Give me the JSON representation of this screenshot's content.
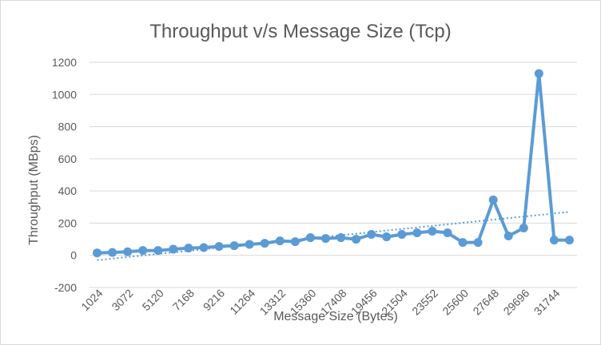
{
  "chart_data": {
    "type": "line",
    "title": "Throughput v/s Message Size (Tcp)",
    "xlabel": "Message Size (Bytes)",
    "ylabel": "Throughput (MBps)",
    "ylim": [
      -200,
      1200
    ],
    "yticks": [
      -200,
      0,
      200,
      400,
      600,
      800,
      1000,
      1200
    ],
    "ytick_labels": [
      "-200",
      "0",
      "200",
      "400",
      "600",
      "800",
      "1000",
      "1200"
    ],
    "x": [
      1024,
      2048,
      3072,
      4096,
      5120,
      6144,
      7168,
      8192,
      9216,
      10240,
      11264,
      12288,
      13312,
      14336,
      15360,
      16384,
      17408,
      18432,
      19456,
      20480,
      21504,
      22528,
      23552,
      24576,
      25600,
      26624,
      27648,
      28672,
      29696,
      30720,
      31744,
      32768
    ],
    "xtick_labels": [
      "1024",
      "3072",
      "5120",
      "7168",
      "9216",
      "11264",
      "13312",
      "15360",
      "17408",
      "19456",
      "21504",
      "23552",
      "25600",
      "27648",
      "29696",
      "31744"
    ],
    "series": [
      {
        "values": [
          15,
          18,
          22,
          30,
          30,
          38,
          45,
          48,
          55,
          60,
          68,
          75,
          90,
          85,
          110,
          105,
          110,
          100,
          130,
          115,
          130,
          140,
          150,
          140,
          80,
          80,
          345,
          120,
          170,
          1130,
          95,
          95
        ],
        "color": "#5b9bd5"
      }
    ],
    "trendline": {
      "kind": "linear",
      "style": "dotted",
      "color": "#5b9bd5",
      "start": -30,
      "end": 270
    },
    "grid": true,
    "legend": "none"
  }
}
